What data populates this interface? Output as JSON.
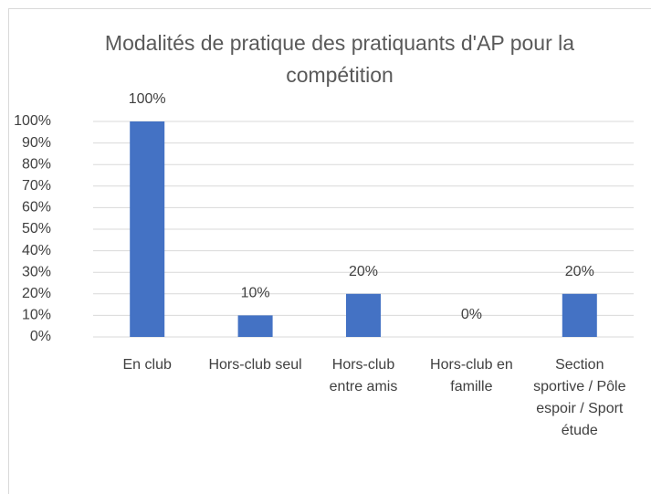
{
  "chart_data": {
    "type": "bar",
    "title": "Modalités de pratique des pratiquants d'AP pour la compétition",
    "categories": [
      "En club",
      "Hors-club seul",
      "Hors-club entre amis",
      "Hors-club en famille",
      "Section sportive / Pôle espoir / Sport étude"
    ],
    "values": [
      100,
      10,
      20,
      0,
      20
    ],
    "value_labels": [
      "100%",
      "10%",
      "20%",
      "0%",
      "20%"
    ],
    "color": "#4472c4",
    "ylim": [
      0,
      100
    ],
    "yticks": [
      {
        "value": 0,
        "label": "0%"
      },
      {
        "value": 10,
        "label": "10%"
      },
      {
        "value": 20,
        "label": "20%"
      },
      {
        "value": 30,
        "label": "30%"
      },
      {
        "value": 40,
        "label": "40%"
      },
      {
        "value": 50,
        "label": "50%"
      },
      {
        "value": 60,
        "label": "60%"
      },
      {
        "value": 70,
        "label": "70%"
      },
      {
        "value": 80,
        "label": "80%"
      },
      {
        "value": 90,
        "label": "90%"
      },
      {
        "value": 100,
        "label": "100%"
      }
    ],
    "grid": true
  }
}
